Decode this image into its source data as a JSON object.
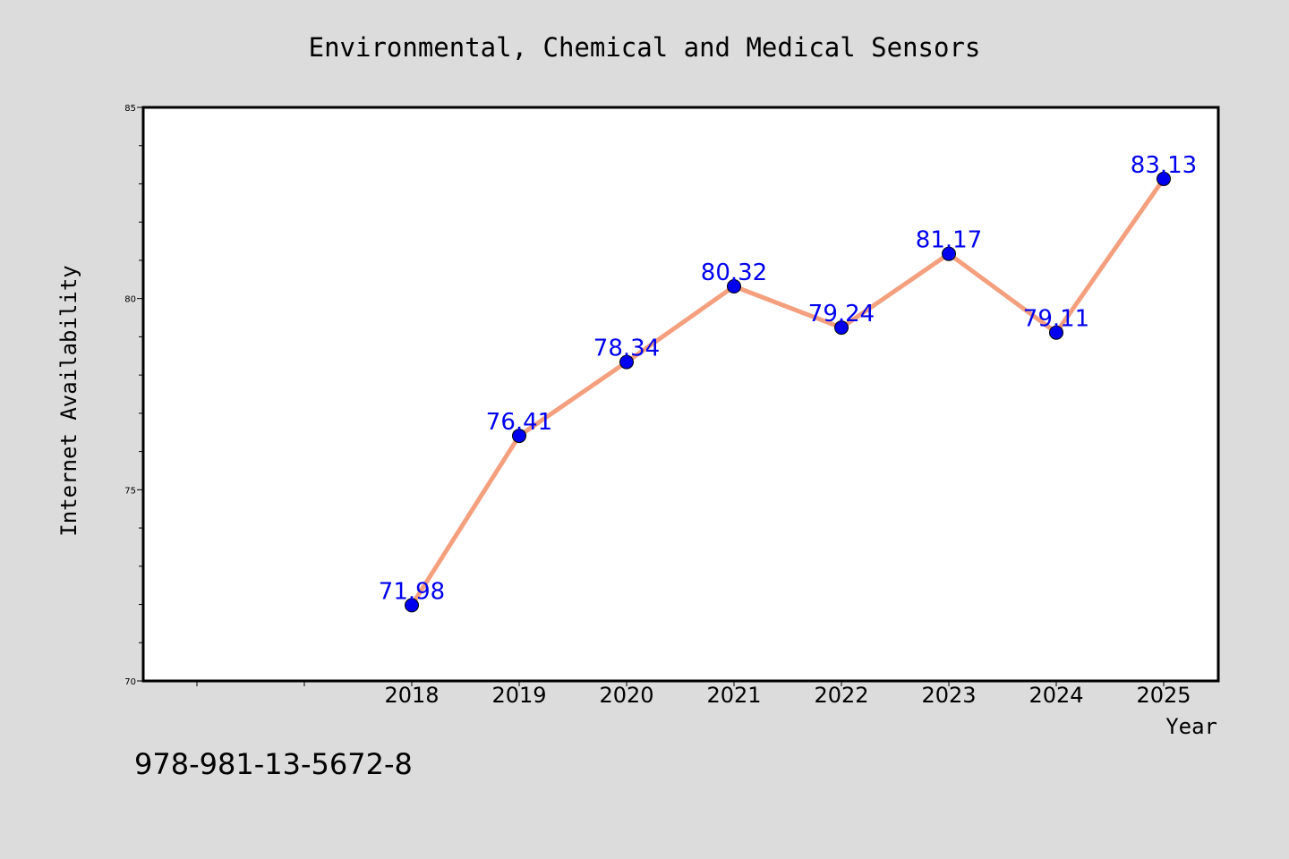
{
  "chart_data": {
    "type": "line",
    "title": "Environmental, Chemical and Medical Sensors",
    "xlabel": "Year",
    "ylabel": "Internet Availability",
    "x": [
      "2018",
      "2019",
      "2020",
      "2021",
      "2022",
      "2023",
      "2024",
      "2025"
    ],
    "series": [
      {
        "values": [
          71.98,
          76.41,
          78.34,
          80.32,
          79.24,
          81.17,
          79.11,
          83.13
        ],
        "labels": [
          "71.98",
          "76.41",
          "78.34",
          "80.32",
          "79.24",
          "81.17",
          "79.11",
          "83.13"
        ]
      }
    ],
    "ylim": [
      70,
      85
    ],
    "yticks": [
      {
        "value": 70,
        "label": "70"
      },
      {
        "value": 75,
        "label": "75"
      },
      {
        "value": 80,
        "label": "80"
      },
      {
        "value": 85,
        "label": "85"
      }
    ],
    "x_slots": 10,
    "x_first_data_slot": 2,
    "grid": false,
    "colors": {
      "line": "#f4a07e",
      "marker": "#0000ee",
      "data_label": "#0000ee",
      "background": "#dcdcdc",
      "plot_area": "#ffffff"
    }
  },
  "footer": {
    "isbn": "978-981-13-5672-8"
  }
}
